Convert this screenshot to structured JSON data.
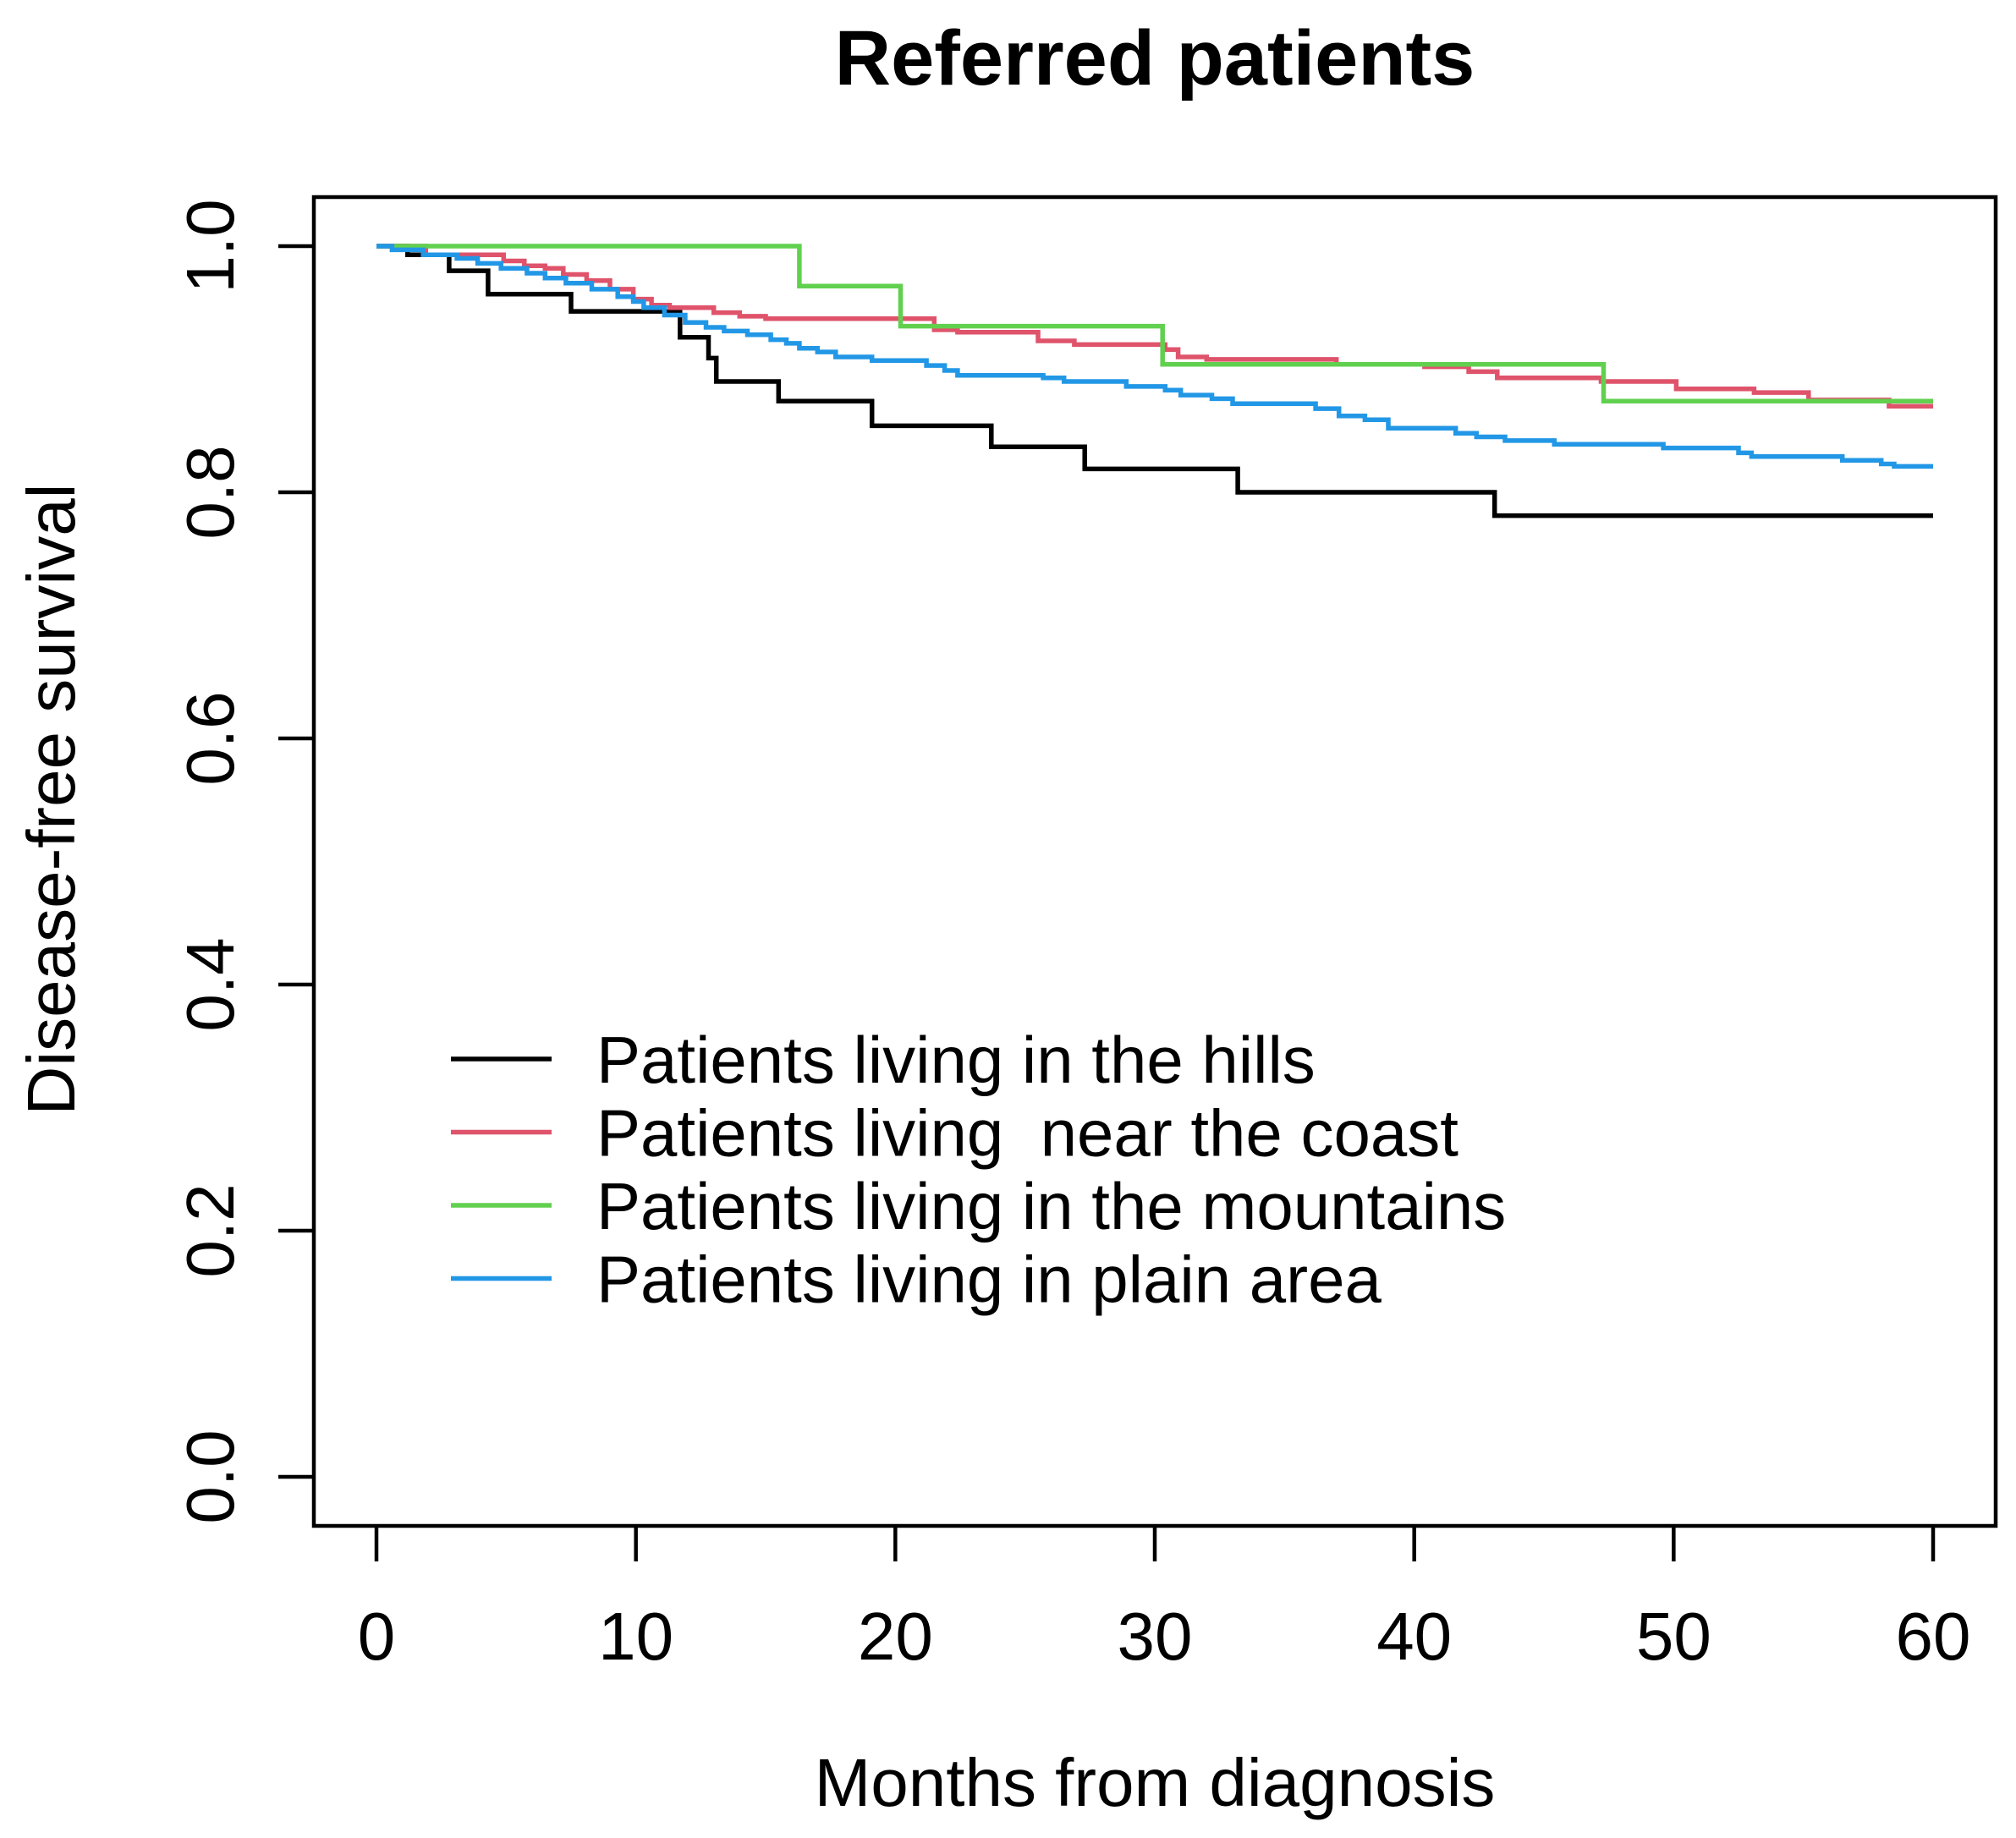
{
  "title": "Referred patients",
  "chart_data": {
    "type": "line",
    "subtype": "kaplan-meier-step",
    "title": "Referred patients",
    "xlabel": "Months from diagnosis",
    "ylabel": "Disease-free survival",
    "xlim": [
      0,
      60
    ],
    "ylim": [
      0,
      1
    ],
    "grid": false,
    "legend_position": "inside-left-middle",
    "x_ticks": [
      {
        "label": "0",
        "value": 0
      },
      {
        "label": "10",
        "value": 10
      },
      {
        "label": "20",
        "value": 20
      },
      {
        "label": "30",
        "value": 30
      },
      {
        "label": "40",
        "value": 40
      },
      {
        "label": "50",
        "value": 50
      },
      {
        "label": "60",
        "value": 60
      }
    ],
    "y_ticks": [
      {
        "label": "0.0",
        "value": 0.0
      },
      {
        "label": "0.2",
        "value": 0.2
      },
      {
        "label": "0.4",
        "value": 0.4
      },
      {
        "label": "0.6",
        "value": 0.6
      },
      {
        "label": "0.8",
        "value": 0.8
      },
      {
        "label": "1.0",
        "value": 1.0
      }
    ],
    "series": [
      {
        "id": "hills",
        "name": "Patients living in the hills",
        "color": "#000000",
        "points": [
          [
            0,
            1.0
          ],
          [
            1.2,
            0.993
          ],
          [
            2.8,
            0.98
          ],
          [
            4.3,
            0.961
          ],
          [
            7.5,
            0.947
          ],
          [
            11.7,
            0.926
          ],
          [
            12.8,
            0.909
          ],
          [
            13.1,
            0.89
          ],
          [
            15.5,
            0.874
          ],
          [
            19.1,
            0.854
          ],
          [
            23.7,
            0.837
          ],
          [
            27.3,
            0.819
          ],
          [
            33.2,
            0.8
          ],
          [
            43.1,
            0.781
          ],
          [
            60,
            0.781
          ]
        ]
      },
      {
        "id": "coast",
        "name": "Patients living  near the coast",
        "color": "#DF536B",
        "points": [
          [
            0,
            1.0
          ],
          [
            1.9,
            0.993
          ],
          [
            4.9,
            0.988
          ],
          [
            5.7,
            0.984
          ],
          [
            6.5,
            0.982
          ],
          [
            7.2,
            0.977
          ],
          [
            8.1,
            0.972
          ],
          [
            9.0,
            0.965
          ],
          [
            9.9,
            0.957
          ],
          [
            10.6,
            0.952
          ],
          [
            11.3,
            0.95
          ],
          [
            13.0,
            0.946
          ],
          [
            14.0,
            0.943
          ],
          [
            15.0,
            0.941
          ],
          [
            21.5,
            0.932
          ],
          [
            22.4,
            0.93
          ],
          [
            25.5,
            0.923
          ],
          [
            26.9,
            0.92
          ],
          [
            30.4,
            0.916
          ],
          [
            30.9,
            0.91
          ],
          [
            32.0,
            0.908
          ],
          [
            37.0,
            0.904
          ],
          [
            40.4,
            0.902
          ],
          [
            42.1,
            0.898
          ],
          [
            43.2,
            0.893
          ],
          [
            47.2,
            0.89
          ],
          [
            50.1,
            0.884
          ],
          [
            53.1,
            0.881
          ],
          [
            55.2,
            0.875
          ],
          [
            58.3,
            0.87
          ],
          [
            60,
            0.87
          ]
        ]
      },
      {
        "id": "mountains",
        "name": "Patients living in the mountains",
        "color": "#61D04F",
        "points": [
          [
            0,
            1.0
          ],
          [
            16.3,
            0.9675
          ],
          [
            20.2,
            0.935
          ],
          [
            30.3,
            0.904
          ],
          [
            47.3,
            0.874
          ],
          [
            60,
            0.874
          ]
        ]
      },
      {
        "id": "plain",
        "name": "Patients living in plain area",
        "color": "#2297E6",
        "points": [
          [
            0,
            1.0
          ],
          [
            0.6,
            0.997
          ],
          [
            1.8,
            0.993
          ],
          [
            3.1,
            0.99
          ],
          [
            3.9,
            0.986
          ],
          [
            4.8,
            0.982
          ],
          [
            5.8,
            0.978
          ],
          [
            6.5,
            0.974
          ],
          [
            7.3,
            0.97
          ],
          [
            8.3,
            0.965
          ],
          [
            9.3,
            0.959
          ],
          [
            9.9,
            0.955
          ],
          [
            10.3,
            0.95
          ],
          [
            11.1,
            0.944
          ],
          [
            11.9,
            0.938
          ],
          [
            12.7,
            0.934
          ],
          [
            13.4,
            0.931
          ],
          [
            14.3,
            0.928
          ],
          [
            15.2,
            0.924
          ],
          [
            15.8,
            0.921
          ],
          [
            16.3,
            0.917
          ],
          [
            17.0,
            0.914
          ],
          [
            17.7,
            0.91
          ],
          [
            19.1,
            0.907
          ],
          [
            21.2,
            0.903
          ],
          [
            21.9,
            0.899
          ],
          [
            22.4,
            0.895
          ],
          [
            25.7,
            0.893
          ],
          [
            26.5,
            0.89
          ],
          [
            28.9,
            0.886
          ],
          [
            30.4,
            0.883
          ],
          [
            31.0,
            0.879
          ],
          [
            32.2,
            0.876
          ],
          [
            33.0,
            0.872
          ],
          [
            36.2,
            0.868
          ],
          [
            37.1,
            0.862
          ],
          [
            38.1,
            0.859
          ],
          [
            39.0,
            0.852
          ],
          [
            41.6,
            0.848
          ],
          [
            42.4,
            0.845
          ],
          [
            43.5,
            0.842
          ],
          [
            45.4,
            0.839
          ],
          [
            49.6,
            0.836
          ],
          [
            52.5,
            0.832
          ],
          [
            53.0,
            0.829
          ],
          [
            56.5,
            0.826
          ],
          [
            58.0,
            0.823
          ],
          [
            58.5,
            0.821
          ],
          [
            60,
            0.821
          ]
        ]
      }
    ]
  }
}
